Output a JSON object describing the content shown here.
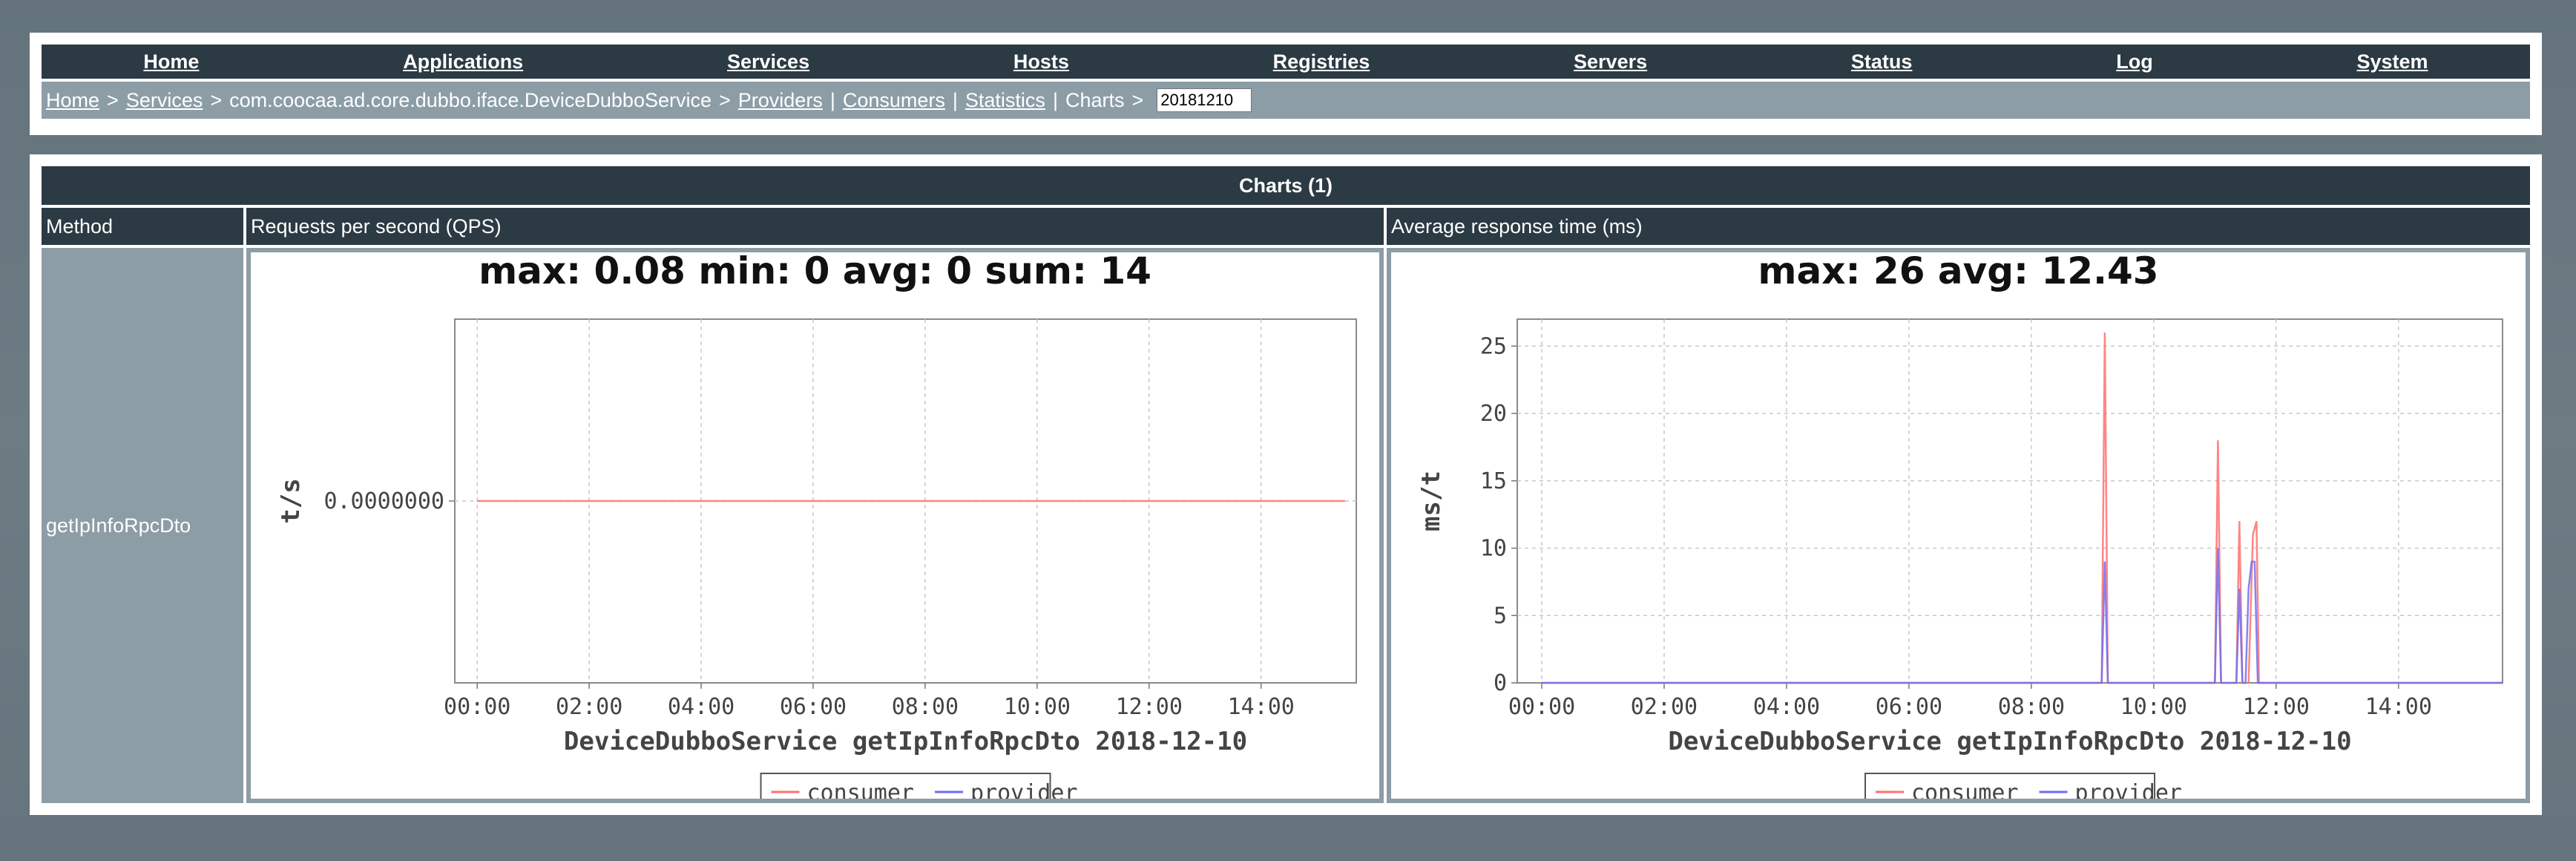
{
  "nav": {
    "items": [
      "Home",
      "Applications",
      "Services",
      "Hosts",
      "Registries",
      "Servers",
      "Status",
      "Log",
      "System"
    ]
  },
  "breadcrumb": {
    "home": "Home",
    "gt1": ">",
    "services": "Services",
    "gt2": ">",
    "service_name": "com.coocaa.ad.core.dubbo.iface.DeviceDubboService",
    "gt3": ">",
    "providers": "Providers",
    "bar1": "|",
    "consumers": "Consumers",
    "bar2": "|",
    "statistics": "Statistics",
    "bar3": "|",
    "charts": "Charts",
    "gt4": ">",
    "date_value": "20181210"
  },
  "charts_panel": {
    "title": "Charts (1)",
    "col_method": "Method",
    "col_qps": "Requests per second (QPS)",
    "col_rt": "Average response time (ms)",
    "method_name": "getIpInfoRpcDto"
  },
  "chart_data": [
    {
      "type": "line",
      "title": "max: 0.08 min: 0 avg: 0 sum: 14",
      "xlabel": "DeviceDubboService  getIpInfoRpcDto  2018-12-10",
      "ylabel": "t/s",
      "x_ticks": [
        "00:00",
        "02:00",
        "04:00",
        "06:00",
        "08:00",
        "10:00",
        "12:00",
        "14:00"
      ],
      "y_ticks": [
        "0.0000000"
      ],
      "xlim": [
        -0.4,
        15.7
      ],
      "ylim": [
        -0.05,
        0.05
      ],
      "grid": true,
      "legend": "bottom-center",
      "series": [
        {
          "name": "consumer",
          "color": "#ff7070",
          "x": [
            0,
            15.5
          ],
          "y": [
            0,
            0
          ]
        },
        {
          "name": "provider",
          "color": "#6e6ef0",
          "x": [],
          "y": []
        }
      ]
    },
    {
      "type": "line",
      "title": "max: 26 avg: 12.43",
      "xlabel": "DeviceDubboService  getIpInfoRpcDto  2018-12-10",
      "ylabel": "ms/t",
      "x_ticks": [
        "00:00",
        "02:00",
        "04:00",
        "06:00",
        "08:00",
        "10:00",
        "12:00",
        "14:00"
      ],
      "y_ticks": [
        "0",
        "5",
        "10",
        "15",
        "20",
        "25"
      ],
      "xlim": [
        -0.4,
        15.7
      ],
      "ylim": [
        0,
        27
      ],
      "grid": true,
      "legend": "bottom-center",
      "series": [
        {
          "name": "consumer",
          "color": "#ff7070",
          "x": [
            0,
            9.15,
            9.2,
            9.25,
            11.0,
            11.05,
            11.1,
            11.35,
            11.4,
            11.45,
            11.55,
            11.62,
            11.68,
            11.72,
            15.7
          ],
          "y": [
            0,
            0,
            26,
            0,
            0,
            18,
            0,
            0,
            12,
            0,
            0,
            11,
            12,
            0,
            0
          ]
        },
        {
          "name": "provider",
          "color": "#6e6ef0",
          "x": [
            0,
            9.15,
            9.2,
            9.25,
            11.0,
            11.05,
            11.1,
            11.35,
            11.4,
            11.45,
            11.5,
            11.55,
            11.6,
            11.65,
            11.7,
            15.7
          ],
          "y": [
            0,
            0,
            9,
            0,
            0,
            10,
            0,
            0,
            7,
            0,
            0,
            7,
            9,
            9,
            0,
            0
          ]
        }
      ]
    }
  ]
}
